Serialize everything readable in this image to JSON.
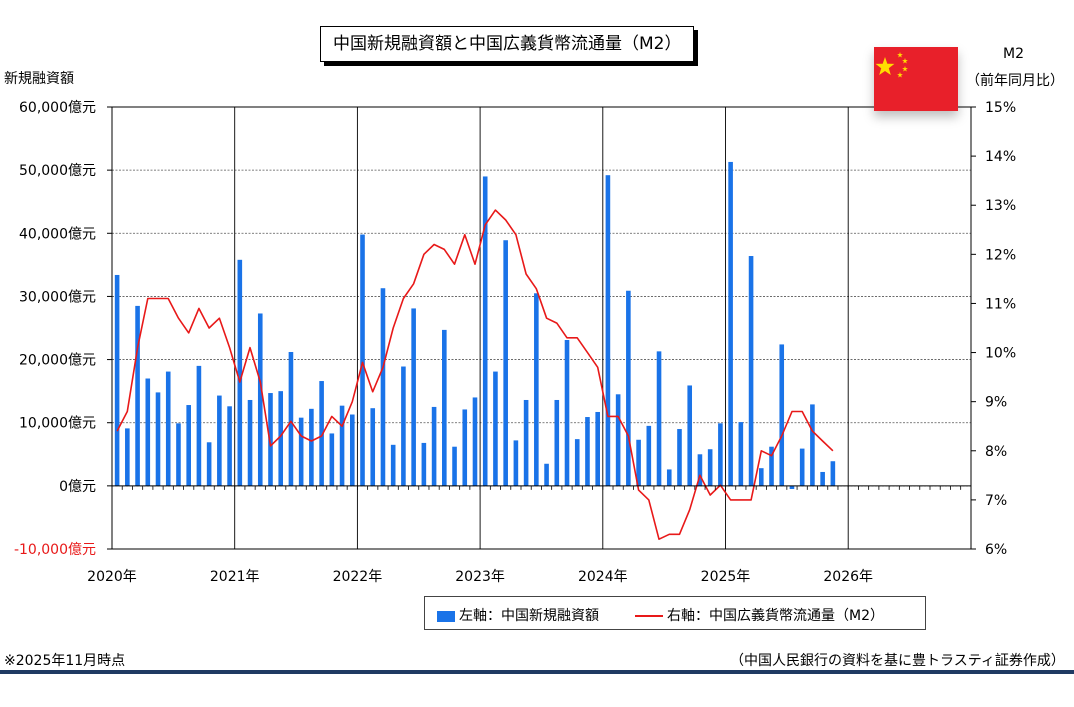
{
  "title": "中国新規融資額と中国広義貨幣流通量（M2）",
  "left_axis_title": "新規融資額",
  "right_axis_title_1": "M2",
  "right_axis_title_2": "（前年同月比）",
  "flag_icon": "china-flag-icon",
  "note": "※2025年11月時点",
  "source": "（中国人民銀行の資料を基に豊トラスティ証券作成）",
  "legend": {
    "bar_label": "左軸：中国新規融資額",
    "line_label": "右軸：中国広義貨幣流通量（M2）"
  },
  "colors": {
    "bar": "#1a73e8",
    "line": "#e81919",
    "negative_tick": "#e81919",
    "footer_rule": "#1f3a63"
  },
  "chart_data": {
    "type": "bar+line",
    "x_ticks": [
      "2020年",
      "2021年",
      "2022年",
      "2023年",
      "2024年",
      "2025年",
      "2026年"
    ],
    "left_axis": {
      "ticks": [
        "60,000億元",
        "50,000億元",
        "40,000億元",
        "30,000億元",
        "20,000億元",
        "10,000億元",
        "0億元",
        "-10,000億元"
      ],
      "ylim": [
        -10000,
        60000
      ]
    },
    "right_axis": {
      "ticks": [
        "15%",
        "14%",
        "13%",
        "12%",
        "11%",
        "10%",
        "9%",
        "8%",
        "7%",
        "6%"
      ],
      "ylim": [
        6,
        15
      ]
    },
    "months": [
      "2020-01",
      "2020-02",
      "2020-03",
      "2020-04",
      "2020-05",
      "2020-06",
      "2020-07",
      "2020-08",
      "2020-09",
      "2020-10",
      "2020-11",
      "2020-12",
      "2021-01",
      "2021-02",
      "2021-03",
      "2021-04",
      "2021-05",
      "2021-06",
      "2021-07",
      "2021-08",
      "2021-09",
      "2021-10",
      "2021-11",
      "2021-12",
      "2022-01",
      "2022-02",
      "2022-03",
      "2022-04",
      "2022-05",
      "2022-06",
      "2022-07",
      "2022-08",
      "2022-09",
      "2022-10",
      "2022-11",
      "2022-12",
      "2023-01",
      "2023-02",
      "2023-03",
      "2023-04",
      "2023-05",
      "2023-06",
      "2023-07",
      "2023-08",
      "2023-09",
      "2023-10",
      "2023-11",
      "2023-12",
      "2024-01",
      "2024-02",
      "2024-03",
      "2024-04",
      "2024-05",
      "2024-06",
      "2024-07",
      "2024-08",
      "2024-09",
      "2024-10",
      "2024-11",
      "2024-12",
      "2025-01",
      "2025-02",
      "2025-03",
      "2025-04",
      "2025-05",
      "2025-06",
      "2025-07",
      "2025-08",
      "2025-09",
      "2025-10",
      "2025-11"
    ],
    "series": [
      {
        "name": "左軸：中国新規融資額",
        "axis": "left",
        "kind": "bar",
        "values": [
          33400,
          9100,
          28500,
          17000,
          14800,
          18100,
          9900,
          12800,
          19000,
          6900,
          14300,
          12600,
          35800,
          13600,
          27300,
          14700,
          15000,
          21200,
          10800,
          12200,
          16600,
          8300,
          12700,
          11300,
          39800,
          12300,
          31300,
          6500,
          18900,
          28100,
          6800,
          12500,
          24700,
          6200,
          12100,
          14000,
          49000,
          18100,
          38900,
          7200,
          13600,
          30500,
          3500,
          13600,
          23100,
          7400,
          10900,
          11700,
          49200,
          14500,
          30900,
          7300,
          9500,
          21300,
          2600,
          9000,
          15900,
          5000,
          5800,
          9900,
          51300,
          10100,
          36400,
          2800,
          6200,
          22400,
          -500,
          5900,
          12900,
          2200,
          3900
        ]
      },
      {
        "name": "右軸：中国広義貨幣流通量（M2）",
        "axis": "right",
        "kind": "line",
        "values": [
          8.4,
          8.8,
          10.1,
          11.1,
          11.1,
          11.1,
          10.7,
          10.4,
          10.9,
          10.5,
          10.7,
          10.1,
          9.4,
          10.1,
          9.4,
          8.1,
          8.3,
          8.6,
          8.3,
          8.2,
          8.3,
          8.7,
          8.5,
          9.0,
          9.8,
          9.2,
          9.7,
          10.5,
          11.1,
          11.4,
          12.0,
          12.2,
          12.1,
          11.8,
          12.4,
          11.8,
          12.6,
          12.9,
          12.7,
          12.4,
          11.6,
          11.3,
          10.7,
          10.6,
          10.3,
          10.3,
          10.0,
          9.7,
          8.7,
          8.7,
          8.3,
          7.2,
          7.0,
          6.2,
          6.3,
          6.3,
          6.8,
          7.5,
          7.1,
          7.3,
          7.0,
          7.0,
          7.0,
          8.0,
          7.9,
          8.3,
          8.8,
          8.8,
          8.4,
          8.2,
          8.0
        ]
      }
    ]
  }
}
